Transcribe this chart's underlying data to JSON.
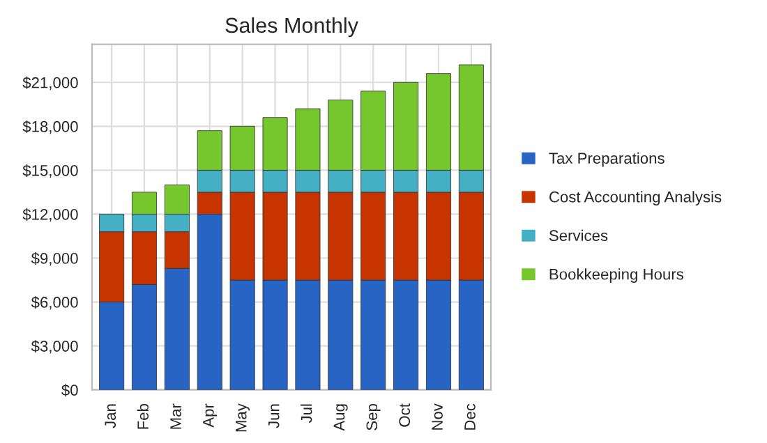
{
  "chart_data": {
    "type": "bar",
    "title": "Sales Monthly",
    "stacked": true,
    "categories": [
      "Jan",
      "Feb",
      "Mar",
      "Apr",
      "May",
      "Jun",
      "Jul",
      "Aug",
      "Sep",
      "Oct",
      "Nov",
      "Dec"
    ],
    "series": [
      {
        "name": "Tax Preparations",
        "color": "#2764c4",
        "values": [
          6000,
          7200,
          8300,
          12000,
          7500,
          7500,
          7500,
          7500,
          7500,
          7500,
          7500,
          7500
        ]
      },
      {
        "name": "Cost Accounting Analysis",
        "color": "#c83400",
        "values": [
          4800,
          3600,
          2500,
          1500,
          6000,
          6000,
          6000,
          6000,
          6000,
          6000,
          6000,
          6000
        ]
      },
      {
        "name": "Services",
        "color": "#45b0c4",
        "values": [
          1200,
          1200,
          1200,
          1500,
          1500,
          1500,
          1500,
          1500,
          1500,
          1500,
          1500,
          1500
        ]
      },
      {
        "name": "Bookkeeping Hours",
        "color": "#76c62e",
        "values": [
          null,
          1500,
          2000,
          2700,
          3000,
          3600,
          4200,
          4800,
          5400,
          6000,
          6600,
          7200
        ]
      }
    ],
    "ylim": [
      0,
      23600
    ],
    "yticks": [
      {
        "value": 0,
        "label": "$0"
      },
      {
        "value": 3000,
        "label": "$3,000"
      },
      {
        "value": 6000,
        "label": "$6,000"
      },
      {
        "value": 9000,
        "label": "$9,000"
      },
      {
        "value": 12000,
        "label": "$12,000"
      },
      {
        "value": 15000,
        "label": "$15,000"
      },
      {
        "value": 18000,
        "label": "$18,000"
      },
      {
        "value": 21000,
        "label": "$21,000"
      }
    ],
    "grid": true,
    "legend": "right"
  }
}
